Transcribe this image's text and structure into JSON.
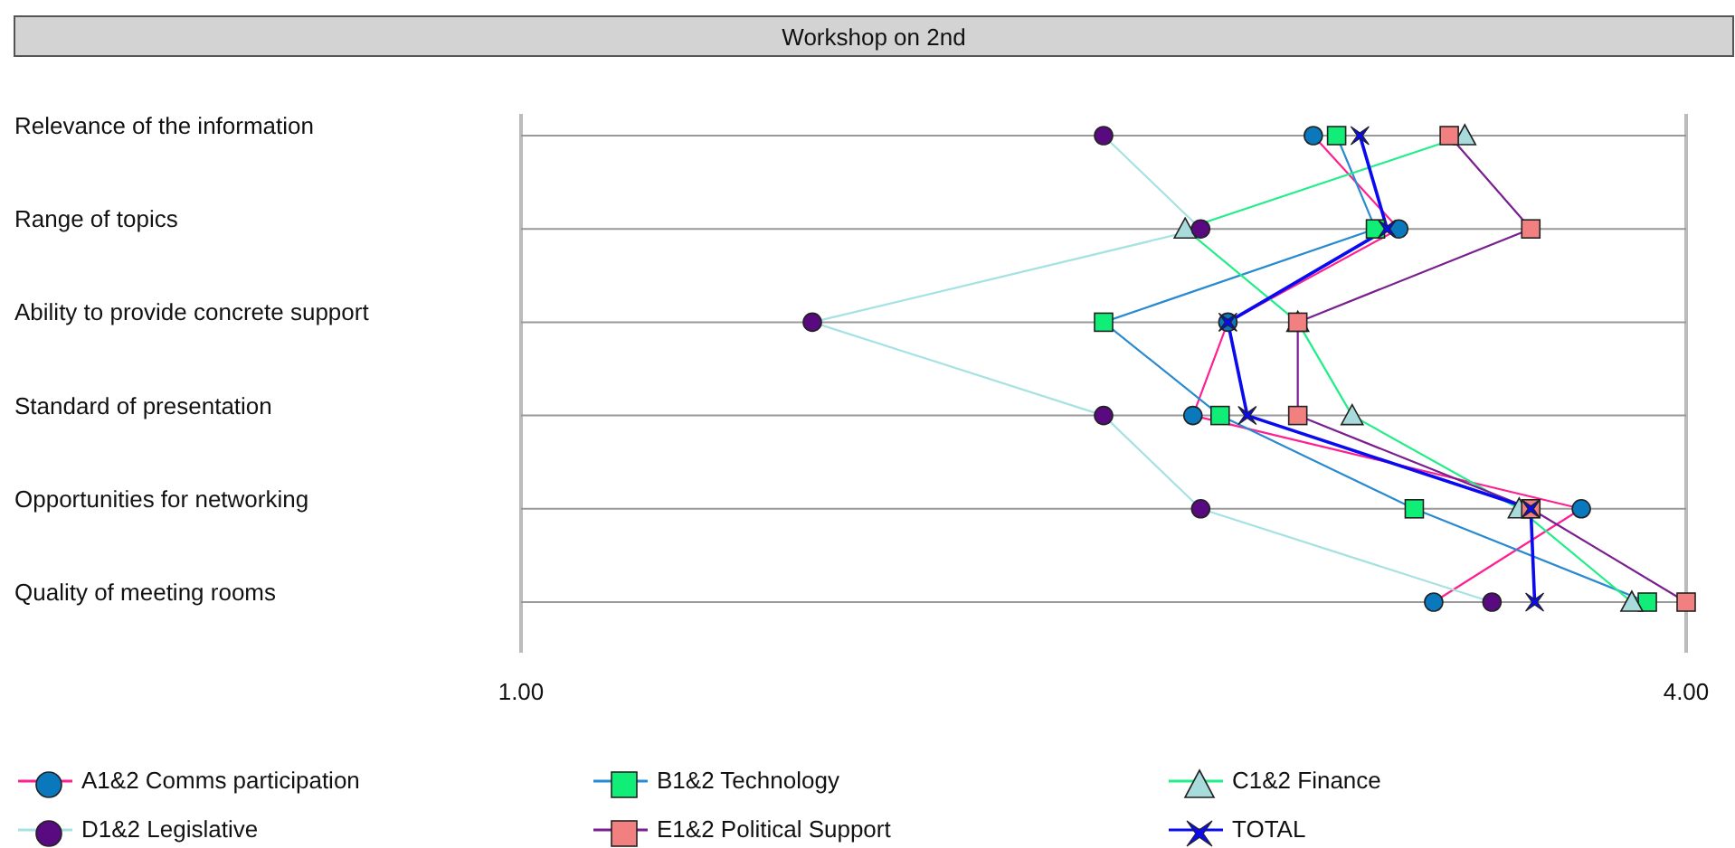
{
  "chart_data": {
    "type": "line",
    "title": "Workshop on 2nd",
    "orientation": "horizontal",
    "categories": [
      "Relevance of the information",
      "Range of topics",
      "Ability to provide concrete support",
      "Standard of presentation",
      "Opportunities for networking",
      "Quality of meeting rooms"
    ],
    "xlim": [
      1,
      4
    ],
    "xticks": [
      {
        "value": 1,
        "label": "1.00"
      },
      {
        "value": 4,
        "label": "4.00"
      }
    ],
    "grid": true,
    "legend": "bottom",
    "series": [
      {
        "name": "A1&2 Comms participation",
        "color": "#ff2090",
        "colors": [
          "#0a78bd",
          "#0a78bd",
          "#0a78bd",
          "#0a78bd",
          "#0a78bd",
          "#0a78bd"
        ],
        "marker": "circle",
        "values": [
          3.04,
          3.26,
          2.82,
          2.73,
          3.73,
          3.35
        ]
      },
      {
        "name": "B1&2 Technology",
        "color": "#2a8ad0",
        "colors": [
          "#11ee77",
          "#11ee77",
          "#11ee77",
          "#11ee77",
          "#11ee77",
          "#11ee77"
        ],
        "marker": "square",
        "values": [
          3.1,
          3.2,
          2.5,
          2.8,
          3.3,
          3.9
        ]
      },
      {
        "name": "C1&2 Finance",
        "color": "#22ee88",
        "colors": [
          "#a8dcdc",
          "#a8dcdc",
          "#a8dcdc",
          "#a8dcdc",
          "#a8dcdc",
          "#a8dcdc"
        ],
        "marker": "triangle",
        "values": [
          3.43,
          2.71,
          3.0,
          3.14,
          3.57,
          3.86
        ]
      },
      {
        "name": "D1&2 Legislative",
        "color": "#a6e2e2",
        "colors": [
          "#5a0a80",
          "#5a0a80",
          "#5a0a80",
          "#5a0a80",
          "#5a0a80",
          "#5a0a80"
        ],
        "marker": "circle",
        "values": [
          2.5,
          2.75,
          1.75,
          2.5,
          2.75,
          3.5
        ]
      },
      {
        "name": "E1&2 Political Support",
        "color": "#7a1f90",
        "colors": [
          "#f28080",
          "#f28080",
          "#f28080",
          "#f28080",
          "#f28080",
          "#f28080"
        ],
        "marker": "square",
        "values": [
          3.39,
          3.6,
          3.0,
          3.0,
          3.6,
          4.0
        ]
      },
      {
        "name": "TOTAL",
        "color": "#0a0af0",
        "colors": [
          "#0a0af0",
          "#0a0af0",
          "#0a0af0",
          "#0a0af0",
          "#0a0af0",
          "#0a0af0"
        ],
        "marker": "star",
        "values": [
          3.16,
          3.23,
          2.82,
          2.87,
          3.6,
          3.61
        ]
      }
    ]
  }
}
